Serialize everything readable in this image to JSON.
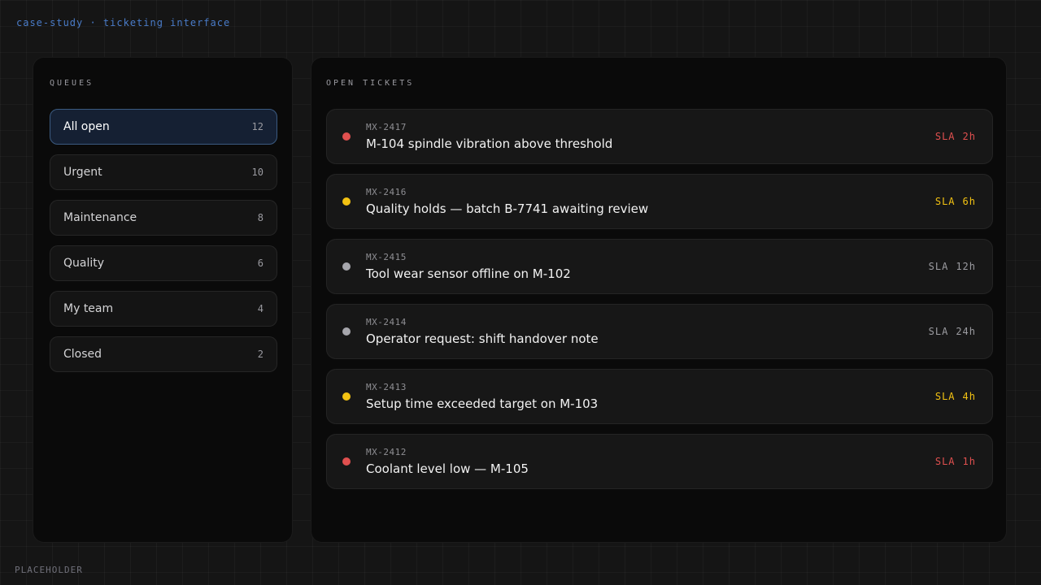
{
  "header": {
    "breadcrumb": "case-study · ticketing interface"
  },
  "sidebar": {
    "title": "QUEUES",
    "items": [
      {
        "label": "All open",
        "count": "12",
        "active": true
      },
      {
        "label": "Urgent",
        "count": "10",
        "active": false
      },
      {
        "label": "Maintenance",
        "count": "8",
        "active": false
      },
      {
        "label": "Quality",
        "count": "6",
        "active": false
      },
      {
        "label": "My team",
        "count": "4",
        "active": false
      },
      {
        "label": "Closed",
        "count": "2",
        "active": false
      }
    ]
  },
  "main": {
    "title": "OPEN TICKETS",
    "tickets": [
      {
        "id": "MX-2417",
        "title": "M-104 spindle vibration above threshold",
        "sla_label": "SLA",
        "sla_value": "2h",
        "severity": "critical",
        "dot_color": "#e0504f",
        "sla_color": "#e0504f"
      },
      {
        "id": "MX-2416",
        "title": "Quality holds — batch B-7741 awaiting review",
        "sla_label": "SLA",
        "sla_value": "6h",
        "severity": "warning",
        "dot_color": "#f3c212",
        "sla_color": "#f3c212"
      },
      {
        "id": "MX-2415",
        "title": "Tool wear sensor offline on M-102",
        "sla_label": "SLA",
        "sla_value": "12h",
        "severity": "normal",
        "dot_color": "#a6a6ac",
        "sla_color": "#9c9ca1"
      },
      {
        "id": "MX-2414",
        "title": "Operator request: shift handover note",
        "sla_label": "SLA",
        "sla_value": "24h",
        "severity": "normal",
        "dot_color": "#a6a6ac",
        "sla_color": "#9c9ca1"
      },
      {
        "id": "MX-2413",
        "title": "Setup time exceeded target on M-103",
        "sla_label": "SLA",
        "sla_value": "4h",
        "severity": "warning",
        "dot_color": "#f3c212",
        "sla_color": "#f3c212"
      },
      {
        "id": "MX-2412",
        "title": "Coolant level low — M-105",
        "sla_label": "SLA",
        "sla_value": "1h",
        "severity": "critical",
        "dot_color": "#e0504f",
        "sla_color": "#e0504f"
      }
    ]
  },
  "footer": {
    "label": "PLACEHOLDER"
  },
  "colors": {
    "accent_blue": "#4a7cc9",
    "critical": "#e0504f",
    "warning": "#f3c212",
    "normal": "#9c9ca1",
    "active_item_bg": "#152033",
    "active_item_border": "#3b5a80"
  }
}
